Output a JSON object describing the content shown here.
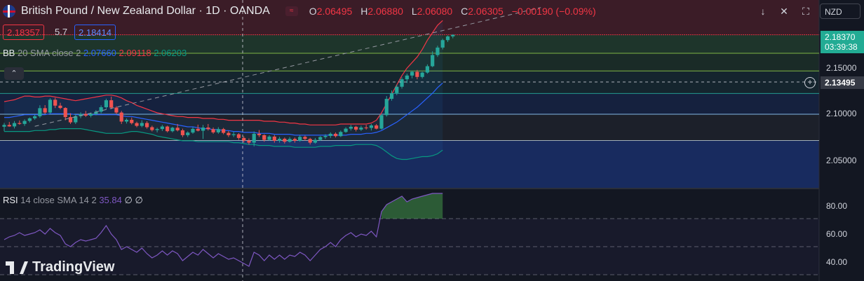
{
  "header": {
    "title": "British Pound / New Zealand Dollar · 1D · OANDA",
    "ohlc": [
      {
        "label": "O",
        "value": "2.06495"
      },
      {
        "label": "H",
        "value": "2.06880"
      },
      {
        "label": "L",
        "value": "2.06080"
      },
      {
        "label": "C",
        "value": "2.06305"
      }
    ],
    "change": "−0.00190 (−0.09%)"
  },
  "toolbar": {
    "currency": "NZD"
  },
  "quote": {
    "sell": "2.18357",
    "spread": "5.7",
    "buy": "2.18414"
  },
  "bb": {
    "label": "BB",
    "params": "20 SMA close 2",
    "basis": "2.07660",
    "upper": "2.09118",
    "lower": "2.06203"
  },
  "rsi": {
    "label": "RSI",
    "params": "14 close SMA 14 2",
    "value": "35.84",
    "v2": "∅",
    "v3": "∅"
  },
  "price_axis": {
    "labels": [
      "2.15000",
      "2.10000",
      "2.05000"
    ],
    "current_price": "2.18370",
    "countdown": "03:39:38",
    "crosshair_price": "2.13495",
    "rsi_labels": [
      "80.00",
      "60.00",
      "40.00"
    ]
  },
  "brand": "TradingView",
  "colors": {
    "up": "#26a69a",
    "down": "#ef5350",
    "bb_upper": "#f23645",
    "bb_basis": "#2962ff",
    "bb_lower": "#089981",
    "rsi": "#7e57c2"
  },
  "chart_data": {
    "type": "candlestick",
    "symbol": "GBPNZD",
    "interval": "1D",
    "ylim": [
      2.02,
      2.2
    ],
    "candles": [
      [
        2.0851,
        2.0892,
        2.0803,
        2.087
      ],
      [
        2.087,
        2.0902,
        2.0851,
        2.0854
      ],
      [
        2.0854,
        2.0912,
        2.0832,
        2.089
      ],
      [
        2.089,
        2.0918,
        2.0872,
        2.0881
      ],
      [
        2.0881,
        2.093,
        2.086,
        2.0913
      ],
      [
        2.0913,
        2.095,
        2.0896,
        2.0941
      ],
      [
        2.0941,
        2.098,
        2.0925,
        2.0963
      ],
      [
        2.0963,
        2.1081,
        2.0946,
        2.105
      ],
      [
        2.105,
        2.1083,
        2.0987,
        2.1003
      ],
      [
        2.1003,
        2.1156,
        2.099,
        2.114
      ],
      [
        2.114,
        2.1161,
        2.1051,
        2.1077
      ],
      [
        2.1077,
        2.1108,
        2.1039,
        2.1052
      ],
      [
        2.1052,
        2.106,
        2.092,
        2.0954
      ],
      [
        2.0954,
        2.0995,
        2.0881,
        2.0898
      ],
      [
        2.0898,
        2.0985,
        2.088,
        2.0964
      ],
      [
        2.0964,
        2.1005,
        2.0942,
        2.0988
      ],
      [
        2.0988,
        2.102,
        2.0955,
        2.097
      ],
      [
        2.097,
        2.1002,
        2.0951,
        2.0991
      ],
      [
        2.0991,
        2.103,
        2.0974,
        2.1012
      ],
      [
        2.1012,
        2.108,
        2.0995,
        2.106
      ],
      [
        2.106,
        2.1152,
        2.104,
        2.1135
      ],
      [
        2.1135,
        2.1174,
        2.104,
        2.1056
      ],
      [
        2.1056,
        2.1071,
        2.0985,
        2.1003
      ],
      [
        2.1003,
        2.1021,
        2.088,
        2.0906
      ],
      [
        2.0906,
        2.094,
        2.0885,
        2.0925
      ],
      [
        2.0925,
        2.095,
        2.0875,
        2.089
      ],
      [
        2.089,
        2.0905,
        2.0845,
        2.086
      ],
      [
        2.086,
        2.092,
        2.0845,
        2.0891
      ],
      [
        2.0891,
        2.091,
        2.083,
        2.0846
      ],
      [
        2.0846,
        2.0862,
        2.08,
        2.0815
      ],
      [
        2.0815,
        2.084,
        2.079,
        2.0826
      ],
      [
        2.0826,
        2.087,
        2.0805,
        2.0853
      ],
      [
        2.0853,
        2.0862,
        2.079,
        2.0803
      ],
      [
        2.0803,
        2.085,
        2.079,
        2.084
      ],
      [
        2.084,
        2.088,
        2.08,
        2.0812
      ],
      [
        2.0812,
        2.083,
        2.074,
        2.076
      ],
      [
        2.076,
        2.0801,
        2.074,
        2.0788
      ],
      [
        2.0788,
        2.0845,
        2.0775,
        2.0828
      ],
      [
        2.0828,
        2.0873,
        2.08,
        2.0808
      ],
      [
        2.0808,
        2.087,
        2.072,
        2.0842
      ],
      [
        2.0842,
        2.088,
        2.081,
        2.0825
      ],
      [
        2.0825,
        2.0843,
        2.0775,
        2.079
      ],
      [
        2.079,
        2.0846,
        2.0775,
        2.0825
      ],
      [
        2.0825,
        2.0838,
        2.077,
        2.0785
      ],
      [
        2.0785,
        2.0805,
        2.074,
        2.076
      ],
      [
        2.076,
        2.0795,
        2.074,
        2.077
      ],
      [
        2.077,
        2.0782,
        2.071,
        2.073
      ],
      [
        2.073,
        2.0748,
        2.068,
        2.07
      ],
      [
        2.07,
        2.0725,
        2.066,
        2.068
      ],
      [
        2.068,
        2.08,
        2.064,
        2.0775
      ],
      [
        2.0775,
        2.0815,
        2.074,
        2.076
      ],
      [
        2.076,
        2.077,
        2.069,
        2.071
      ],
      [
        2.071,
        2.076,
        2.07,
        2.0745
      ],
      [
        2.0745,
        2.0762,
        2.068,
        2.07
      ],
      [
        2.07,
        2.0742,
        2.068,
        2.0722
      ],
      [
        2.0722,
        2.0735,
        2.067,
        2.069
      ],
      [
        2.069,
        2.074,
        2.068,
        2.072
      ],
      [
        2.072,
        2.0735,
        2.068,
        2.07
      ],
      [
        2.07,
        2.076,
        2.069,
        2.0742
      ],
      [
        2.0742,
        2.0755,
        2.07,
        2.072
      ],
      [
        2.072,
        2.0732,
        2.066,
        2.068
      ],
      [
        2.068,
        2.073,
        2.067,
        2.071
      ],
      [
        2.071,
        2.075,
        2.07,
        2.074
      ],
      [
        2.074,
        2.077,
        2.072,
        2.0752
      ],
      [
        2.0752,
        2.079,
        2.073,
        2.0775
      ],
      [
        2.0775,
        2.079,
        2.0735,
        2.075
      ],
      [
        2.075,
        2.081,
        2.074,
        2.0795
      ],
      [
        2.0795,
        2.0845,
        2.0785,
        2.083
      ],
      [
        2.083,
        2.087,
        2.081,
        2.085
      ],
      [
        2.085,
        2.086,
        2.08,
        2.082
      ],
      [
        2.082,
        2.0862,
        2.0805,
        2.0842
      ],
      [
        2.0842,
        2.087,
        2.082,
        2.0838
      ],
      [
        2.0838,
        2.088,
        2.081,
        2.0865
      ],
      [
        2.0865,
        2.088,
        2.0822,
        2.083
      ],
      [
        2.083,
        2.099,
        2.082,
        2.0975
      ],
      [
        2.0975,
        2.118,
        2.096,
        2.115
      ],
      [
        2.115,
        2.124,
        2.113,
        2.1212
      ],
      [
        2.1212,
        2.1302,
        2.119,
        2.128
      ],
      [
        2.128,
        2.138,
        2.126,
        2.136
      ],
      [
        2.136,
        2.142,
        2.132,
        2.14
      ],
      [
        2.14,
        2.1452,
        2.137,
        2.144
      ],
      [
        2.144,
        2.146,
        2.136,
        2.1385
      ],
      [
        2.1385,
        2.144,
        2.1368,
        2.1432
      ],
      [
        2.1432,
        2.152,
        2.142,
        2.15
      ],
      [
        2.15,
        2.166,
        2.149,
        2.162
      ],
      [
        2.162,
        2.172,
        2.16,
        2.17
      ],
      [
        2.17,
        2.1795,
        2.168,
        2.178
      ],
      [
        2.178,
        2.183,
        2.176,
        2.182
      ],
      [
        2.182,
        2.1843,
        2.18,
        2.1837
      ]
    ],
    "bb_upper": [
      2.112,
      2.113,
      2.114,
      2.116,
      2.118,
      2.118,
      2.117,
      2.117,
      2.118,
      2.118,
      2.117,
      2.116,
      2.115,
      2.114,
      2.113,
      2.114,
      2.115,
      2.116,
      2.117,
      2.118,
      2.119,
      2.119,
      2.118,
      2.116,
      2.113,
      2.111,
      2.108,
      2.106,
      2.104,
      2.102,
      2.1,
      2.099,
      2.098,
      2.097,
      2.096,
      2.096,
      2.095,
      2.095,
      2.095,
      2.094,
      2.094,
      2.094,
      2.093,
      2.093,
      2.092,
      2.092,
      2.092,
      2.092,
      2.092,
      2.092,
      2.092,
      2.091,
      2.091,
      2.091,
      2.09,
      2.09,
      2.089,
      2.089,
      2.088,
      2.088,
      2.087,
      2.087,
      2.087,
      2.087,
      2.087,
      2.087,
      2.088,
      2.088,
      2.088,
      2.088,
      2.088,
      2.088,
      2.089,
      2.092,
      2.1,
      2.11,
      2.12,
      2.13,
      2.14,
      2.148,
      2.154,
      2.16,
      2.168,
      2.178,
      2.186,
      2.194,
      2.199
    ],
    "bb_basis": [
      2.095,
      2.095,
      2.096,
      2.097,
      2.098,
      2.098,
      2.098,
      2.098,
      2.098,
      2.099,
      2.099,
      2.099,
      2.099,
      2.099,
      2.098,
      2.098,
      2.098,
      2.098,
      2.098,
      2.098,
      2.098,
      2.098,
      2.098,
      2.097,
      2.096,
      2.096,
      2.095,
      2.094,
      2.093,
      2.092,
      2.091,
      2.09,
      2.089,
      2.088,
      2.087,
      2.086,
      2.085,
      2.085,
      2.084,
      2.083,
      2.083,
      2.082,
      2.082,
      2.081,
      2.081,
      2.08,
      2.08,
      2.079,
      2.079,
      2.079,
      2.078,
      2.078,
      2.078,
      2.077,
      2.077,
      2.077,
      2.077,
      2.076,
      2.076,
      2.076,
      2.076,
      2.076,
      2.076,
      2.076,
      2.076,
      2.076,
      2.076,
      2.076,
      2.077,
      2.077,
      2.077,
      2.078,
      2.078,
      2.079,
      2.081,
      2.084,
      2.087,
      2.09,
      2.094,
      2.098,
      2.102,
      2.106,
      2.111,
      2.116,
      2.121,
      2.127,
      2.132
    ],
    "bb_lower": [
      2.08,
      2.08,
      2.08,
      2.08,
      2.08,
      2.08,
      2.081,
      2.081,
      2.081,
      2.082,
      2.082,
      2.083,
      2.083,
      2.083,
      2.083,
      2.083,
      2.082,
      2.081,
      2.08,
      2.079,
      2.078,
      2.078,
      2.078,
      2.078,
      2.079,
      2.08,
      2.08,
      2.079,
      2.078,
      2.077,
      2.075,
      2.074,
      2.073,
      2.072,
      2.071,
      2.07,
      2.07,
      2.07,
      2.069,
      2.069,
      2.069,
      2.069,
      2.069,
      2.069,
      2.069,
      2.068,
      2.068,
      2.067,
      2.066,
      2.066,
      2.065,
      2.065,
      2.065,
      2.064,
      2.064,
      2.064,
      2.064,
      2.063,
      2.063,
      2.063,
      2.063,
      2.063,
      2.064,
      2.064,
      2.064,
      2.065,
      2.065,
      2.065,
      2.065,
      2.066,
      2.066,
      2.066,
      2.066,
      2.065,
      2.062,
      2.058,
      2.054,
      2.051,
      2.05,
      2.05,
      2.051,
      2.052,
      2.053,
      2.053,
      2.054,
      2.056,
      2.06
    ],
    "rsi": [
      55,
      57,
      58,
      60,
      58,
      59,
      60,
      62,
      59,
      63,
      60,
      58,
      52,
      50,
      53,
      55,
      54,
      55,
      56,
      60,
      65,
      59,
      55,
      48,
      50,
      48,
      46,
      49,
      45,
      42,
      44,
      47,
      44,
      47,
      45,
      40,
      43,
      46,
      44,
      48,
      45,
      42,
      45,
      43,
      41,
      42,
      40,
      38,
      36,
      46,
      44,
      40,
      44,
      41,
      44,
      41,
      44,
      43,
      46,
      44,
      40,
      44,
      48,
      50,
      53,
      50,
      55,
      58,
      60,
      57,
      59,
      58,
      61,
      57,
      75,
      80,
      82,
      84,
      86,
      82,
      84,
      85,
      86,
      87,
      88,
      88,
      88
    ],
    "rsi_sma": [
      55,
      55,
      56,
      56,
      57,
      57,
      58,
      58,
      58,
      59,
      59,
      59,
      58,
      57,
      56,
      56,
      55,
      55,
      55,
      55,
      56,
      56,
      56,
      55,
      54,
      53,
      52,
      51,
      50,
      49,
      48,
      47,
      47,
      46,
      46,
      45,
      45,
      45,
      45,
      45,
      45,
      44,
      44,
      44,
      43,
      43,
      42,
      42,
      42,
      42,
      42,
      42,
      42,
      42,
      42,
      42,
      42,
      42,
      42,
      42,
      42,
      43,
      43,
      44,
      44,
      45,
      46,
      47,
      48,
      49,
      50,
      51,
      52,
      53,
      56,
      59,
      62,
      65,
      68,
      70,
      72,
      74,
      76,
      78,
      80,
      82,
      83
    ],
    "horizontal_levels": [
      2.1837,
      2.1639,
      2.1449,
      2.1208,
      2.0985,
      2.0703
    ],
    "trendline": {
      "from": [
        6,
        2.0855
      ],
      "to": [
        86,
        2.207
      ]
    }
  }
}
